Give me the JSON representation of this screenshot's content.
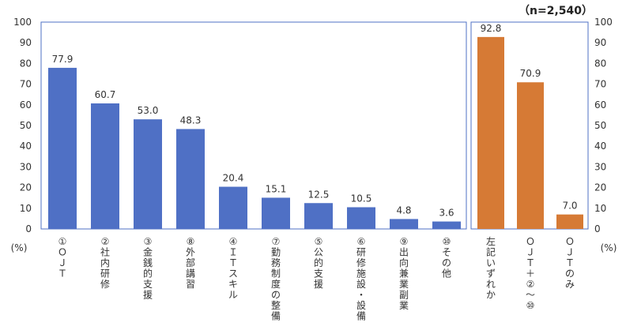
{
  "note": "（n=2,540）",
  "chart_data": [
    {
      "type": "bar",
      "y_unit_label": "(%)",
      "ylim": [
        0,
        100
      ],
      "yticks": [
        0,
        10,
        20,
        30,
        40,
        50,
        60,
        70,
        80,
        90,
        100
      ],
      "color": "#4f70c5",
      "categories": [
        "①ＯＪＴ",
        "②社内研修",
        "③金銭的支援",
        "⑧外部講習",
        "④ＩＴスキル",
        "⑦勤務制度の整備",
        "⑤公的支援",
        "⑥研修施設・設備",
        "⑨出向兼業副業",
        "⑩その他"
      ],
      "values": [
        77.9,
        60.7,
        53.0,
        48.3,
        20.4,
        15.1,
        12.5,
        10.5,
        4.8,
        3.6
      ],
      "value_labels": [
        "77.9",
        "60.7",
        "53.0",
        "48.3",
        "20.4",
        "15.1",
        "12.5",
        "10.5",
        "4.8",
        "3.6"
      ]
    },
    {
      "type": "bar",
      "y_unit_label": "(%)",
      "ylim": [
        0,
        100
      ],
      "yticks": [
        0,
        10,
        20,
        30,
        40,
        50,
        60,
        70,
        80,
        90,
        100
      ],
      "color": "#d67a35",
      "categories": [
        "左記いずれか",
        "ＯＪＴ＋②〜⑩",
        "ＯＪＴのみ"
      ],
      "values": [
        92.8,
        70.9,
        7.0
      ],
      "value_labels": [
        "92.8",
        "70.9",
        "7.0"
      ]
    }
  ]
}
